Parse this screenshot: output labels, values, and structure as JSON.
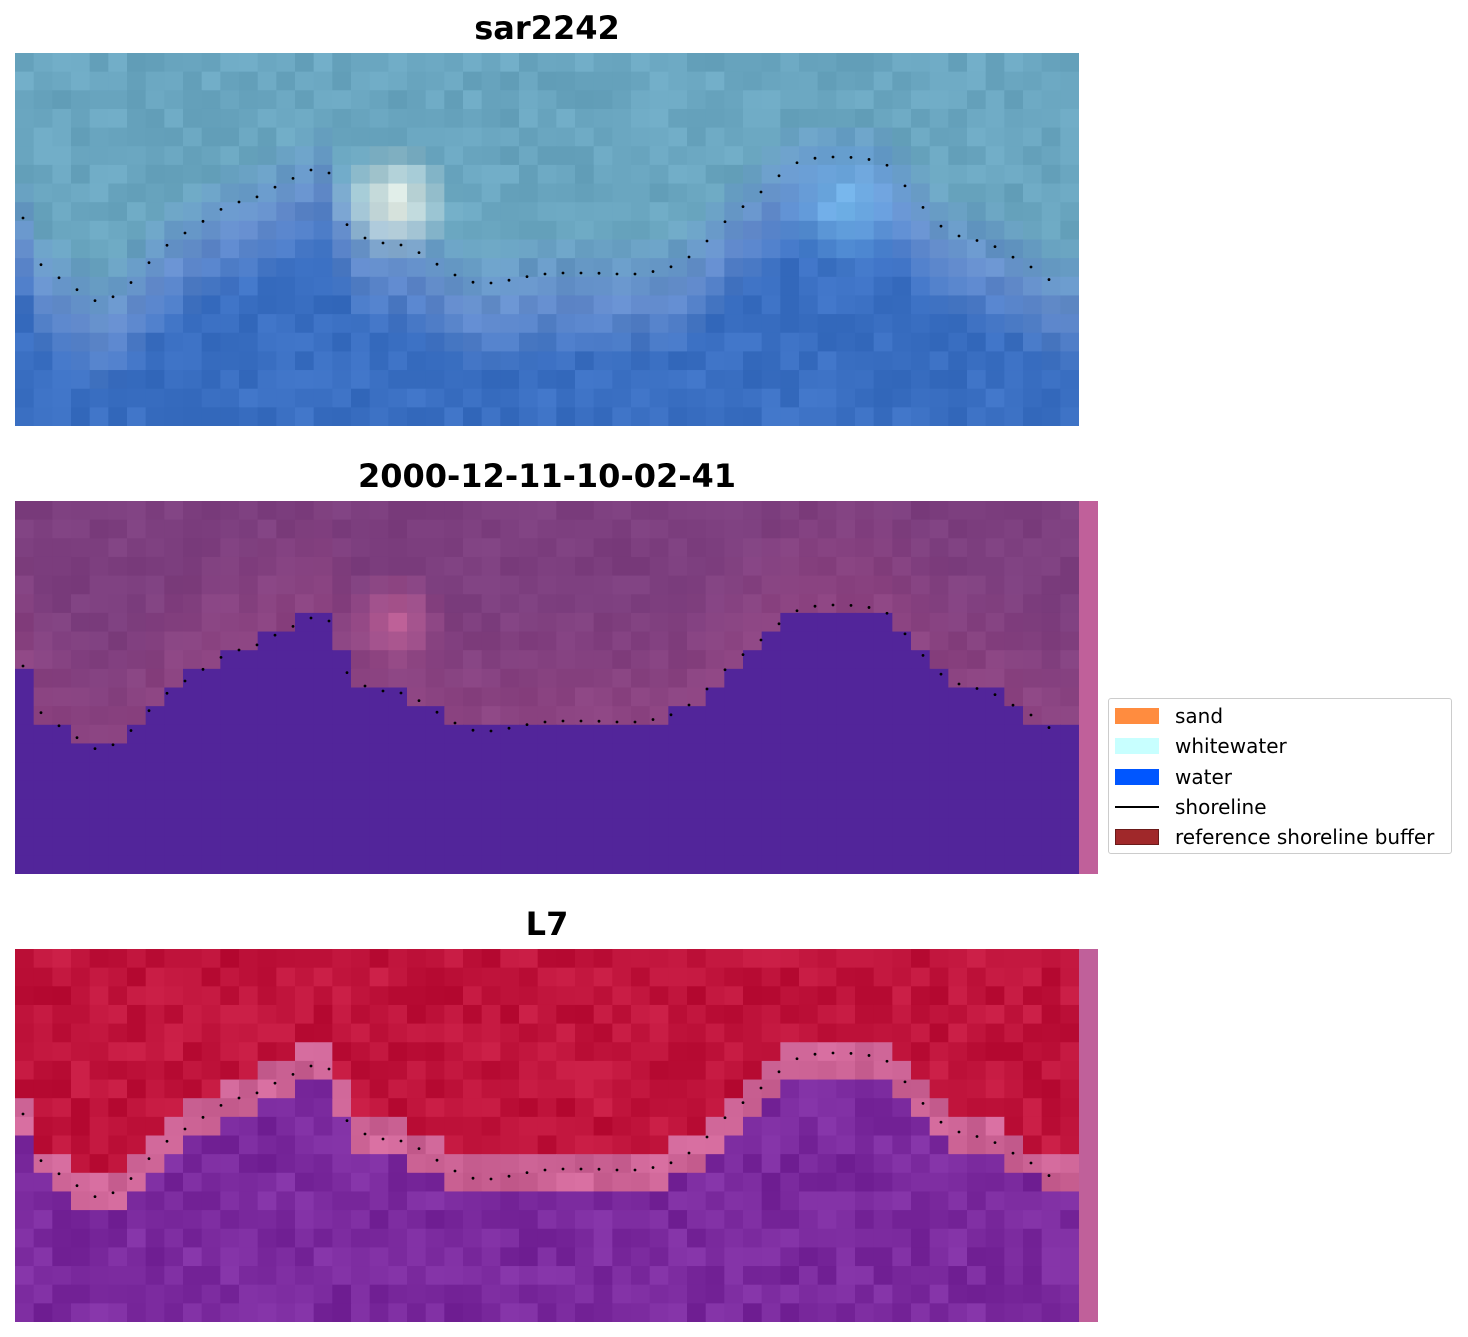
{
  "panels": [
    {
      "title": "sar2242",
      "kind": "rgb"
    },
    {
      "title": "2000-12-11-10-02-41",
      "kind": "classified"
    },
    {
      "title": "L7",
      "kind": "mndwi"
    }
  ],
  "legend": {
    "items": [
      {
        "label": "sand",
        "color": "#ff8c3f",
        "type": "patch"
      },
      {
        "label": "whitewater",
        "color": "#c8ffff",
        "type": "patch"
      },
      {
        "label": "water",
        "color": "#0056ff",
        "type": "patch"
      },
      {
        "label": "shoreline",
        "color": "#000000",
        "type": "line"
      },
      {
        "label": "reference shoreline buffer",
        "color": "#a0282a",
        "type": "patch"
      }
    ]
  },
  "colors": {
    "water_rgb": "#3a6fc2",
    "land_rgb": "#6aa6c0",
    "classified_water": "#52259a",
    "classified_land": "#7d3f7f",
    "mndwi_land": "#c0143c",
    "mndwi_water": "#7b2a9e",
    "edge_strip": "#c0609a"
  }
}
